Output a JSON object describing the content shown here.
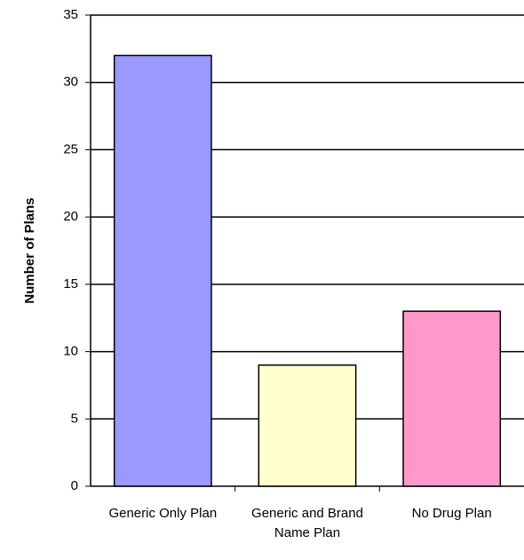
{
  "chart_data": {
    "type": "bar",
    "y_label": "Number of Plans",
    "categories": [
      "Generic Only Plan",
      "Generic and Brand Name Plan",
      "No Drug Plan"
    ],
    "values": [
      32,
      9,
      13
    ],
    "colors": [
      "#9999ff",
      "#ffffcc",
      "#ff99cc"
    ],
    "ylim": [
      0,
      35
    ],
    "yticks": [
      0,
      5,
      10,
      15,
      20,
      25,
      30,
      35
    ],
    "grid": true
  }
}
